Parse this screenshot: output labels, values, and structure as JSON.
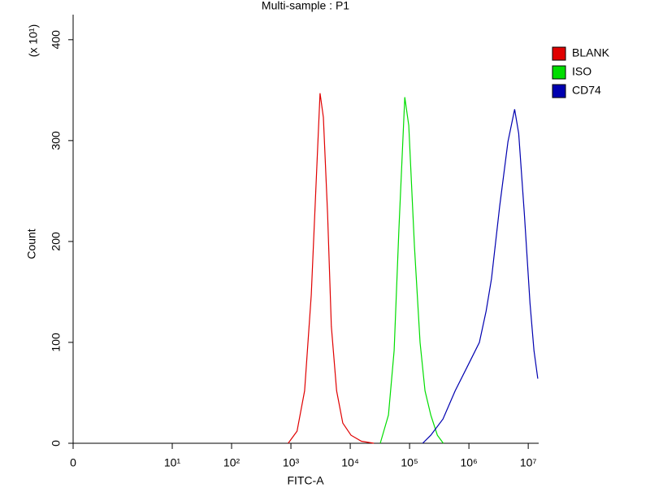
{
  "chart_data": {
    "type": "histogram-overlay",
    "title": "Multi-sample : P1",
    "x_label": "FITC-A",
    "y_label": "Count",
    "y_multiplier": "(x 10¹)",
    "legend": "right",
    "xscale": "biexponential",
    "xlim": [
      0,
      15000000
    ],
    "xticks": [
      {
        "value": 0,
        "label": "0"
      },
      {
        "value": 10,
        "label": "10¹"
      },
      {
        "value": 100,
        "label": "10²"
      },
      {
        "value": 1000,
        "label": "10³"
      },
      {
        "value": 10000,
        "label": "10⁴"
      },
      {
        "value": 100000,
        "label": "10⁵"
      },
      {
        "value": 1000000,
        "label": "10⁶"
      },
      {
        "value": 10000000,
        "label": "10⁷"
      }
    ],
    "ylim": [
      0,
      420
    ],
    "yticks": [
      0,
      100,
      200,
      300,
      400
    ],
    "series": [
      {
        "name": "BLANK",
        "color": "#e00000",
        "x": [
          900,
          1270,
          1700,
          2200,
          2630,
          3100,
          3520,
          4150,
          4800,
          5900,
          7500,
          10300,
          15400,
          25000
        ],
        "values": [
          0,
          12,
          52,
          147,
          251,
          347,
          323,
          227,
          116,
          52,
          20,
          8,
          2,
          0
        ]
      },
      {
        "name": "ISO",
        "color": "#00dd00",
        "x": [
          32000,
          44000,
          55000,
          66000,
          83000,
          97000,
          121000,
          150000,
          182000,
          228000,
          294000,
          370000
        ],
        "values": [
          0,
          28,
          92,
          211,
          343,
          315,
          195,
          100,
          52,
          28,
          8,
          0
        ]
      },
      {
        "name": "CD74",
        "color": "#0000b0",
        "x": [
          166000,
          228000,
          366000,
          587000,
          940000,
          1500000,
          1950000,
          2400000,
          3300000,
          4550000,
          5900000,
          6900000,
          8600000,
          10700000,
          12500000,
          14500000
        ],
        "values": [
          0,
          8,
          24,
          52,
          76,
          100,
          131,
          163,
          235,
          299,
          331,
          307,
          227,
          139,
          92,
          64
        ]
      }
    ]
  }
}
